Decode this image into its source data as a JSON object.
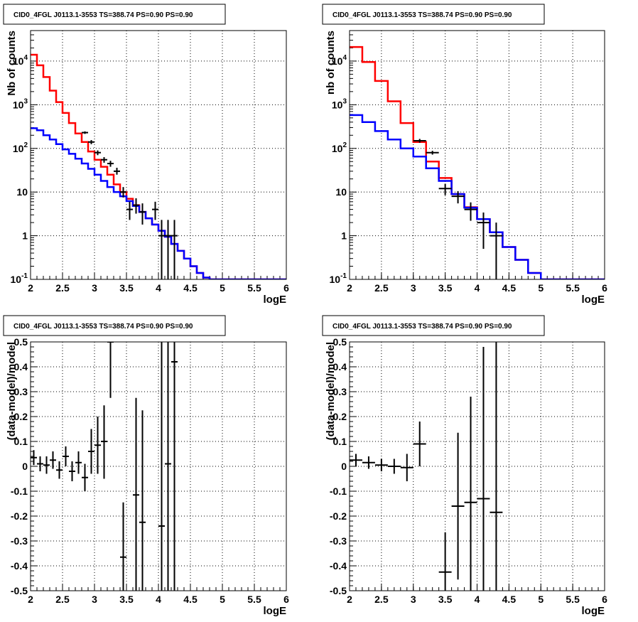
{
  "chart_data": [
    {
      "type": "line",
      "title": "CID0_4FGL J0113.1-3553 TS=388.74 PS=0.90 PS=0.90",
      "xlabel": "logE",
      "ylabel": "Nb of counts",
      "xlim": [
        2,
        6
      ],
      "ylim": [
        0.1,
        50000
      ],
      "log_y": true,
      "grid": true,
      "x_ticks": [
        "2",
        "2.5",
        "3",
        "3.5",
        "4",
        "4.5",
        "5",
        "5.5",
        "6"
      ],
      "y_ticks": [
        "10^-1",
        "1",
        "10",
        "10^2",
        "10^3",
        "10^4"
      ],
      "series": [
        {
          "kind": "hist",
          "color": "#ff0000",
          "edges": [
            2.0,
            2.1,
            2.2,
            2.3,
            2.4,
            2.5,
            2.6,
            2.7,
            2.8,
            2.9,
            3.0,
            3.1,
            3.2,
            3.3,
            3.4,
            3.5,
            3.6,
            3.7,
            3.8,
            3.9,
            4.0,
            4.1,
            4.2,
            4.3,
            4.4,
            4.5,
            4.6,
            4.7,
            4.8,
            4.9,
            5.0,
            5.1,
            5.2,
            5.3,
            5.4,
            5.5,
            5.6,
            5.7,
            5.8,
            5.9,
            6.0
          ],
          "values": [
            14000,
            8000,
            4300,
            2100,
            1150,
            650,
            380,
            220,
            140,
            85,
            55,
            38,
            25,
            15,
            10,
            7,
            5,
            3.5,
            2.5,
            1.8,
            1.3,
            0.95,
            0.65,
            0.45,
            0.3,
            0.2,
            0.14,
            0.11,
            0.1,
            0.1,
            0.1,
            0.1,
            0.1,
            0.1,
            0.1,
            0.1,
            0.1,
            0.1,
            0.1,
            0.1
          ]
        },
        {
          "kind": "hist",
          "color": "#0000ff",
          "edges": [
            2.0,
            2.1,
            2.2,
            2.3,
            2.4,
            2.5,
            2.6,
            2.7,
            2.8,
            2.9,
            3.0,
            3.1,
            3.2,
            3.3,
            3.4,
            3.5,
            3.6,
            3.7,
            3.8,
            3.9,
            4.0,
            4.1,
            4.2,
            4.3,
            4.4,
            4.5,
            4.6,
            4.7,
            4.8,
            4.9,
            5.0,
            5.1,
            5.2,
            5.3,
            5.4,
            5.5,
            5.6,
            5.7,
            5.8,
            5.9,
            6.0
          ],
          "values": [
            290,
            260,
            200,
            160,
            125,
            95,
            75,
            58,
            45,
            34,
            25,
            18,
            13,
            10,
            8,
            6.2,
            4.8,
            3.5,
            2.5,
            1.8,
            1.3,
            0.95,
            0.65,
            0.45,
            0.3,
            0.2,
            0.14,
            0.11,
            0.1,
            0.1,
            0.1,
            0.1,
            0.1,
            0.1,
            0.1,
            0.1,
            0.1,
            0.1,
            0.1,
            0.1
          ]
        },
        {
          "kind": "points",
          "color": "#000000",
          "x": [
            2.85,
            2.95,
            3.05,
            3.15,
            3.25,
            3.35,
            3.45,
            3.55,
            3.65,
            3.75,
            3.95,
            4.05,
            4.15,
            4.25
          ],
          "y": [
            230,
            140,
            80,
            55,
            45,
            30,
            10,
            4,
            5,
            3.5,
            4,
            1,
            1,
            1
          ],
          "ylow": [
            215,
            125,
            70,
            47,
            38,
            25,
            7.5,
            2.3,
            3.2,
            1.8,
            2.3,
            0.1,
            0.1,
            0.1
          ],
          "yhigh": [
            245,
            155,
            90,
            63,
            52,
            36,
            13,
            6,
            7.2,
            5.5,
            6,
            2.3,
            2.3,
            2.3
          ],
          "xerr": 0.05
        }
      ]
    },
    {
      "type": "line",
      "title": "CID0_4FGL J0113.1-3553 TS=388.74 PS=0.90 PS=0.90",
      "xlabel": "logE",
      "ylabel": "nb of counts",
      "xlim": [
        2,
        6
      ],
      "ylim": [
        0.1,
        50000
      ],
      "log_y": true,
      "grid": true,
      "x_ticks": [
        "2",
        "2.5",
        "3",
        "3.5",
        "4",
        "4.5",
        "5",
        "5.5",
        "6"
      ],
      "y_ticks": [
        "10^-1",
        "1",
        "10",
        "10^2",
        "10^3",
        "10^4"
      ],
      "series": [
        {
          "kind": "hist",
          "color": "#ff0000",
          "edges": [
            2.0,
            2.2,
            2.4,
            2.6,
            2.8,
            3.0,
            3.2,
            3.4,
            3.6,
            3.8,
            4.0,
            4.2,
            4.4,
            4.6,
            4.8,
            5.0,
            5.2,
            5.4,
            5.6,
            5.8,
            6.0
          ],
          "values": [
            21000,
            9500,
            3500,
            1200,
            380,
            140,
            50,
            21,
            9,
            4.5,
            2.4,
            1.2,
            0.55,
            0.28,
            0.14,
            0.1,
            0.1,
            0.1,
            0.1,
            0.1
          ]
        },
        {
          "kind": "hist",
          "color": "#0000ff",
          "edges": [
            2.0,
            2.2,
            2.4,
            2.6,
            2.8,
            3.0,
            3.2,
            3.4,
            3.6,
            3.8,
            4.0,
            4.2,
            4.4,
            4.6,
            4.8,
            5.0,
            5.2,
            5.4,
            5.6,
            5.8,
            6.0
          ],
          "values": [
            580,
            400,
            250,
            160,
            100,
            65,
            35,
            18,
            9,
            4.4,
            2.4,
            1.2,
            0.55,
            0.28,
            0.14,
            0.1,
            0.1,
            0.1,
            0.1,
            0.1
          ]
        },
        {
          "kind": "points",
          "color": "#000000",
          "x": [
            3.1,
            3.3,
            3.5,
            3.7,
            3.9,
            4.1,
            4.3
          ],
          "y": [
            150,
            80,
            12,
            8,
            4,
            2,
            1
          ],
          "ylow": [
            135,
            72,
            8.5,
            5.5,
            2.2,
            0.5,
            0.1
          ],
          "yhigh": [
            165,
            88,
            15.5,
            10.5,
            5.8,
            3.4,
            2.0
          ],
          "xerr": 0.1
        }
      ]
    },
    {
      "type": "scatter",
      "title": "CID0_4FGL J0113.1-3553 TS=388.74 PS=0.90 PS=0.90",
      "xlabel": "logE",
      "ylabel": "(data-model)/model",
      "xlim": [
        2,
        6
      ],
      "ylim": [
        -0.5,
        0.5
      ],
      "grid": true,
      "x_ticks": [
        "2",
        "2.5",
        "3",
        "3.5",
        "4",
        "4.5",
        "5",
        "5.5",
        "6"
      ],
      "y_ticks": [
        "-0.5",
        "-0.4",
        "-0.3",
        "-0.2",
        "-0.1",
        "0",
        "0.1",
        "0.2",
        "0.3",
        "0.4",
        "0.5"
      ],
      "series": [
        {
          "kind": "points",
          "color": "#000000",
          "x": [
            2.05,
            2.15,
            2.25,
            2.35,
            2.45,
            2.55,
            2.65,
            2.75,
            2.85,
            2.95,
            3.05,
            3.15,
            3.25,
            3.45,
            3.65,
            3.75,
            4.05,
            4.15,
            4.25
          ],
          "y": [
            0.035,
            0.01,
            0.005,
            0.025,
            -0.015,
            0.04,
            -0.02,
            0.015,
            -0.045,
            0.06,
            0.085,
            0.1,
            0.5,
            -0.365,
            -0.115,
            -0.225,
            -0.24,
            0.01,
            0.42
          ],
          "ylow": [
            0.005,
            -0.02,
            -0.03,
            -0.01,
            -0.05,
            0.0,
            -0.06,
            -0.03,
            -0.1,
            -0.03,
            -0.03,
            -0.05,
            0.275,
            -0.6,
            -0.5,
            -0.6,
            -0.6,
            -0.6,
            -0.6
          ],
          "yhigh": [
            0.065,
            0.04,
            0.04,
            0.06,
            0.02,
            0.08,
            0.02,
            0.06,
            0.01,
            0.15,
            0.2,
            0.245,
            0.6,
            -0.145,
            0.275,
            0.225,
            0.6,
            0.6,
            0.6
          ],
          "xerr": 0.05
        }
      ]
    },
    {
      "type": "scatter",
      "title": "CID0_4FGL J0113.1-3553 TS=388.74 PS=0.90 PS=0.90",
      "xlabel": "logE",
      "ylabel": "(data-model)/model",
      "xlim": [
        2,
        6
      ],
      "ylim": [
        -0.5,
        0.5
      ],
      "grid": true,
      "x_ticks": [
        "2",
        "2.5",
        "3",
        "3.5",
        "4",
        "4.5",
        "5",
        "5.5",
        "6"
      ],
      "y_ticks": [
        "-0.5",
        "-0.4",
        "-0.3",
        "-0.2",
        "-0.1",
        "0",
        "0.1",
        "0.2",
        "0.3",
        "0.4",
        "0.5"
      ],
      "series": [
        {
          "kind": "points",
          "color": "#000000",
          "x": [
            2.1,
            2.3,
            2.5,
            2.7,
            2.9,
            3.1,
            3.5,
            3.7,
            3.9,
            4.1,
            4.3
          ],
          "y": [
            0.025,
            0.015,
            0.005,
            0.0,
            -0.005,
            0.09,
            -0.425,
            -0.16,
            -0.145,
            -0.13,
            -0.185
          ],
          "ylow": [
            0.0,
            -0.01,
            -0.02,
            -0.03,
            -0.06,
            0.0,
            -0.6,
            -0.455,
            -0.6,
            -0.6,
            -0.6
          ],
          "yhigh": [
            0.05,
            0.04,
            0.03,
            0.03,
            0.05,
            0.18,
            -0.265,
            0.135,
            0.28,
            0.48,
            0.6
          ],
          "xerr": 0.1
        }
      ]
    }
  ]
}
